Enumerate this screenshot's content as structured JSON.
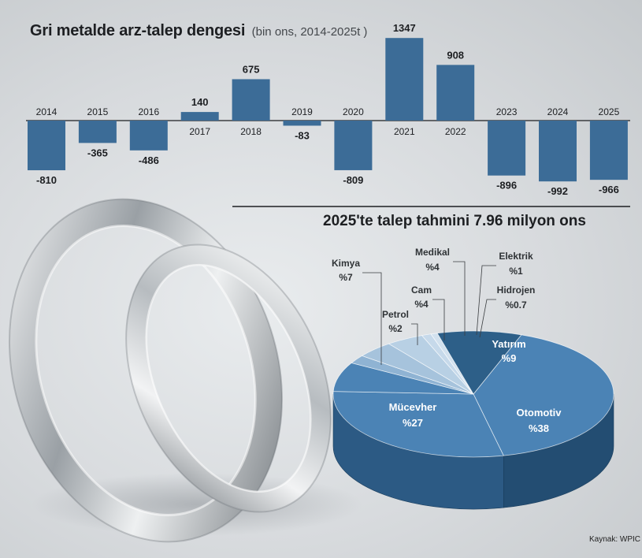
{
  "bar_chart": {
    "title": "Gri metalde arz-talep dengesi",
    "subtitle": "(bin ons, 2014-2025t )"
  },
  "pie_chart": {
    "title": "2025'te talep tahmini 7.96 milyon ons"
  },
  "source": "Kaynak: WPIC",
  "colors": {
    "bar": "#3c6c97",
    "pie_dark": "#2d5f88",
    "pie_mid": "#4b83b5",
    "pie_light": "#a6c3dc",
    "text": "#1d1f22"
  },
  "chart_data": [
    {
      "type": "bar",
      "title": "Gri metalde arz-talep dengesi",
      "subtitle": "(bin ons, 2014-2025t )",
      "categories": [
        "2014",
        "2015",
        "2016",
        "2017",
        "2018",
        "2019",
        "2020",
        "2021",
        "2022",
        "2023",
        "2024",
        "2025"
      ],
      "values": [
        -810,
        -365,
        -486,
        140,
        675,
        -83,
        -809,
        1347,
        908,
        -896,
        -992,
        -966
      ],
      "value_labels": [
        "-810",
        "-365",
        "-486",
        "140",
        "675",
        "-83",
        "-809",
        "1347",
        "908",
        "-896",
        "-992",
        "-966"
      ],
      "xlabel": "",
      "ylabel": "bin ons",
      "ylim": [
        -1000,
        1400
      ]
    },
    {
      "type": "pie",
      "title": "2025'te talep tahmini 7.96 milyon ons",
      "slices": [
        {
          "label": "Otomotiv",
          "value_label": "%38",
          "value": 38
        },
        {
          "label": "Mücevher",
          "value_label": "%27",
          "value": 27
        },
        {
          "label": "Kimya",
          "value_label": "%7",
          "value": 7
        },
        {
          "label": "Petrol",
          "value_label": "%2",
          "value": 2
        },
        {
          "label": "Cam",
          "value_label": "%4",
          "value": 4
        },
        {
          "label": "Medikal",
          "value_label": "%4",
          "value": 4
        },
        {
          "label": "Elektrik",
          "value_label": "%1",
          "value": 1
        },
        {
          "label": "Hidrojen",
          "value_label": "%0.7",
          "value": 0.7
        },
        {
          "label": "Yatırım",
          "value_label": "%9",
          "value": 9
        }
      ]
    }
  ]
}
